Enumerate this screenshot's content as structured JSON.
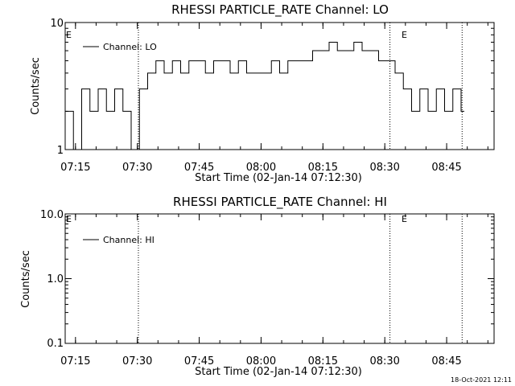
{
  "charts": [
    {
      "title": "RHESSI PARTICLE_RATE Channel: LO",
      "ylabel": "Counts/sec",
      "xlabel": "Start Time (02-Jan-14 07:12:30)",
      "legend": "Channel: LO",
      "yticks": [
        "10",
        "1"
      ],
      "xticks": [
        "07:15",
        "07:30",
        "07:45",
        "08:00",
        "08:15",
        "08:30",
        "08:45"
      ],
      "event_marker": "E"
    },
    {
      "title": "RHESSI PARTICLE_RATE Channel: HI",
      "ylabel": "Counts/sec",
      "xlabel": "Start Time (02-Jan-14 07:12:30)",
      "legend": "Channel: HI",
      "yticks": [
        "10.0",
        "1.0",
        "0.1"
      ],
      "xticks": [
        "07:15",
        "07:30",
        "07:45",
        "08:00",
        "08:15",
        "08:30",
        "08:45"
      ],
      "event_marker": "E"
    }
  ],
  "footer": {
    "timestamp": "18-Oct-2021 12:11"
  },
  "chart_data": [
    {
      "type": "line",
      "title": "RHESSI PARTICLE_RATE Channel: LO",
      "xlabel": "Start Time (02-Jan-14 07:12:30)",
      "ylabel": "Counts/sec",
      "yscale": "log",
      "ylim": [
        1,
        10
      ],
      "xlim": [
        "07:12:30",
        "08:56:30"
      ],
      "grid": false,
      "legend_position": "top-left",
      "vertical_markers": [
        "07:30:15",
        "08:31:15",
        "08:48:45"
      ],
      "series": [
        {
          "name": "Channel: LO",
          "x": [
            "07:12:30",
            "07:14:30",
            "07:16:30",
            "07:18:30",
            "07:20:30",
            "07:22:30",
            "07:24:30",
            "07:26:30",
            "07:28:30",
            "07:30:30",
            "07:32:30",
            "07:34:30",
            "07:36:30",
            "07:38:30",
            "07:40:30",
            "07:42:30",
            "07:44:30",
            "07:46:30",
            "07:48:30",
            "07:50:30",
            "07:52:30",
            "07:54:30",
            "07:56:30",
            "07:58:30",
            "08:00:30",
            "08:02:30",
            "08:04:30",
            "08:06:30",
            "08:08:30",
            "08:10:30",
            "08:12:30",
            "08:14:30",
            "08:16:30",
            "08:18:30",
            "08:20:30",
            "08:22:30",
            "08:24:30",
            "08:26:30",
            "08:28:30",
            "08:30:30",
            "08:32:30",
            "08:34:30",
            "08:36:30",
            "08:38:30",
            "08:40:30",
            "08:42:30",
            "08:44:30",
            "08:46:30",
            "08:48:30"
          ],
          "values": [
            2,
            1,
            3,
            2,
            3,
            2,
            3,
            2,
            1,
            3,
            4,
            5,
            4,
            5,
            4,
            5,
            5,
            4,
            5,
            5,
            4,
            5,
            4,
            4,
            4,
            5,
            4,
            5,
            5,
            5,
            6,
            6,
            7,
            6,
            6,
            7,
            6,
            6,
            5,
            5,
            4,
            3,
            2,
            3,
            2,
            3,
            2,
            3,
            2
          ]
        }
      ]
    },
    {
      "type": "line",
      "title": "RHESSI PARTICLE_RATE Channel: HI",
      "xlabel": "Start Time (02-Jan-14 07:12:30)",
      "ylabel": "Counts/sec",
      "yscale": "log",
      "ylim": [
        0.1,
        10
      ],
      "xlim": [
        "07:12:30",
        "08:56:30"
      ],
      "grid": false,
      "legend_position": "top-left",
      "vertical_markers": [
        "07:30:15",
        "08:31:15",
        "08:48:45"
      ],
      "series": [
        {
          "name": "Channel: HI",
          "x": [],
          "values": []
        }
      ]
    }
  ]
}
